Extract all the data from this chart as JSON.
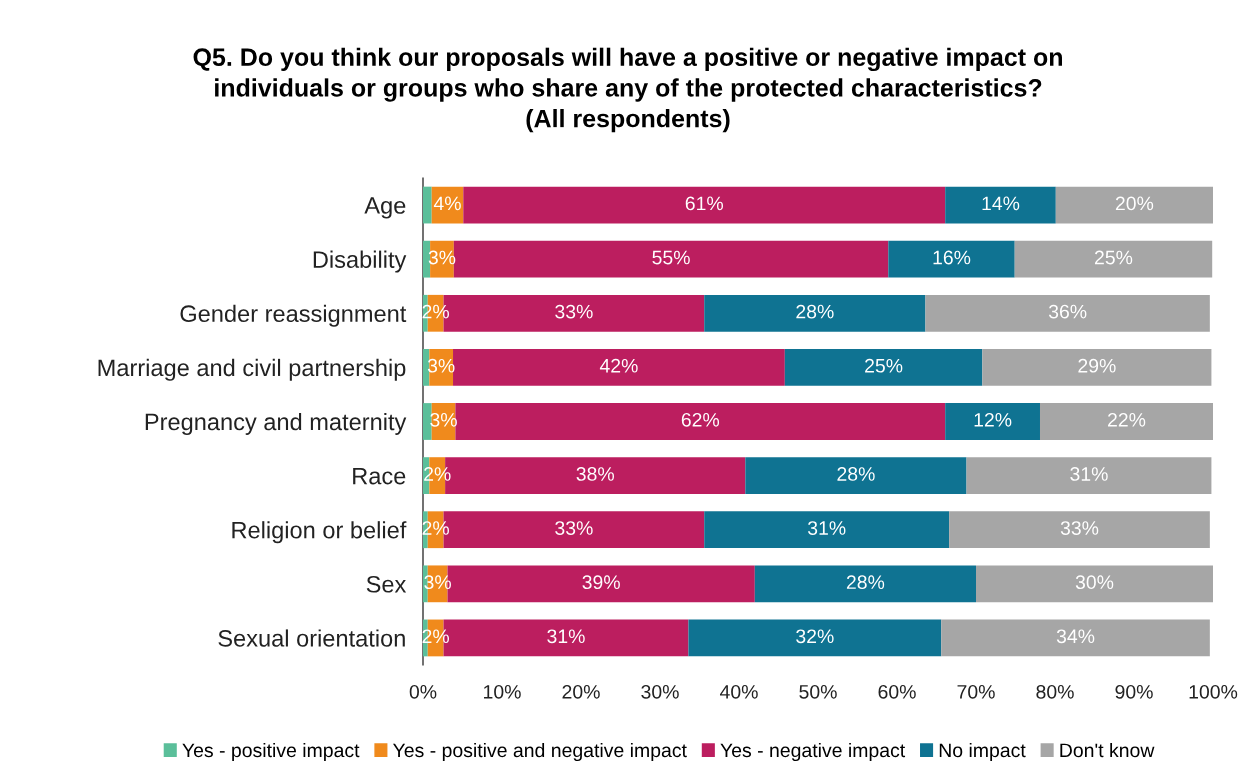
{
  "chart_data": {
    "type": "bar",
    "orientation": "horizontal",
    "stacked": true,
    "title": "Q5. Do you think our proposals will have a positive or negative impact on\nindividuals or groups who share any of the protected characteristics?\n(All respondents)",
    "categories": [
      "Age",
      "Disability",
      "Gender reassignment",
      "Marriage and civil partnership",
      "Pregnancy and maternity",
      "Race",
      "Religion or belief",
      "Sex",
      "Sexual orientation"
    ],
    "series": [
      {
        "name": "Yes - positive impact",
        "color": "#5bbf9a",
        "values": [
          1.1,
          0.9,
          0.6,
          0.8,
          1.1,
          0.8,
          0.6,
          0.6,
          0.6
        ]
      },
      {
        "name": "Yes - positive and negative impact",
        "color": "#f08a1c",
        "values": [
          4,
          3,
          2,
          3,
          3,
          2,
          2,
          2.5,
          2
        ],
        "value_labels": [
          "4%",
          "3%",
          "2%",
          "3%",
          "3%",
          "2%",
          "2%",
          "3%",
          "2%"
        ]
      },
      {
        "name": "Yes - negative impact",
        "color": "#bc1e5f",
        "values": [
          61,
          55,
          33,
          42,
          62,
          38,
          33,
          38.9,
          31
        ],
        "value_labels": [
          "61%",
          "55%",
          "33%",
          "42%",
          "62%",
          "38%",
          "33%",
          "39%",
          "31%"
        ]
      },
      {
        "name": "No impact",
        "color": "#0f7392",
        "values": [
          14,
          16,
          28,
          25,
          12,
          28,
          31,
          28,
          32
        ],
        "value_labels": [
          "14%",
          "16%",
          "28%",
          "25%",
          "12%",
          "28%",
          "31%",
          "28%",
          "32%"
        ]
      },
      {
        "name": "Don't know",
        "color": "#a6a6a6",
        "values": [
          19.9,
          25,
          36,
          29,
          21.9,
          31,
          33,
          30,
          34
        ],
        "value_labels": [
          "20%",
          "25%",
          "36%",
          "29%",
          "22%",
          "31%",
          "33%",
          "30%",
          "34%"
        ]
      }
    ],
    "xlim": [
      0,
      100
    ],
    "xticks": [
      {
        "value": 0,
        "label": "0%"
      },
      {
        "value": 10,
        "label": "10%"
      },
      {
        "value": 20,
        "label": "20%"
      },
      {
        "value": 30,
        "label": "30%"
      },
      {
        "value": 40,
        "label": "40%"
      },
      {
        "value": 50,
        "label": "50%"
      },
      {
        "value": 60,
        "label": "60%"
      },
      {
        "value": 70,
        "label": "70%"
      },
      {
        "value": 80,
        "label": "80%"
      },
      {
        "value": 90,
        "label": "90%"
      },
      {
        "value": 100,
        "label": "100%"
      }
    ],
    "grid": false,
    "legend": "bottom"
  }
}
